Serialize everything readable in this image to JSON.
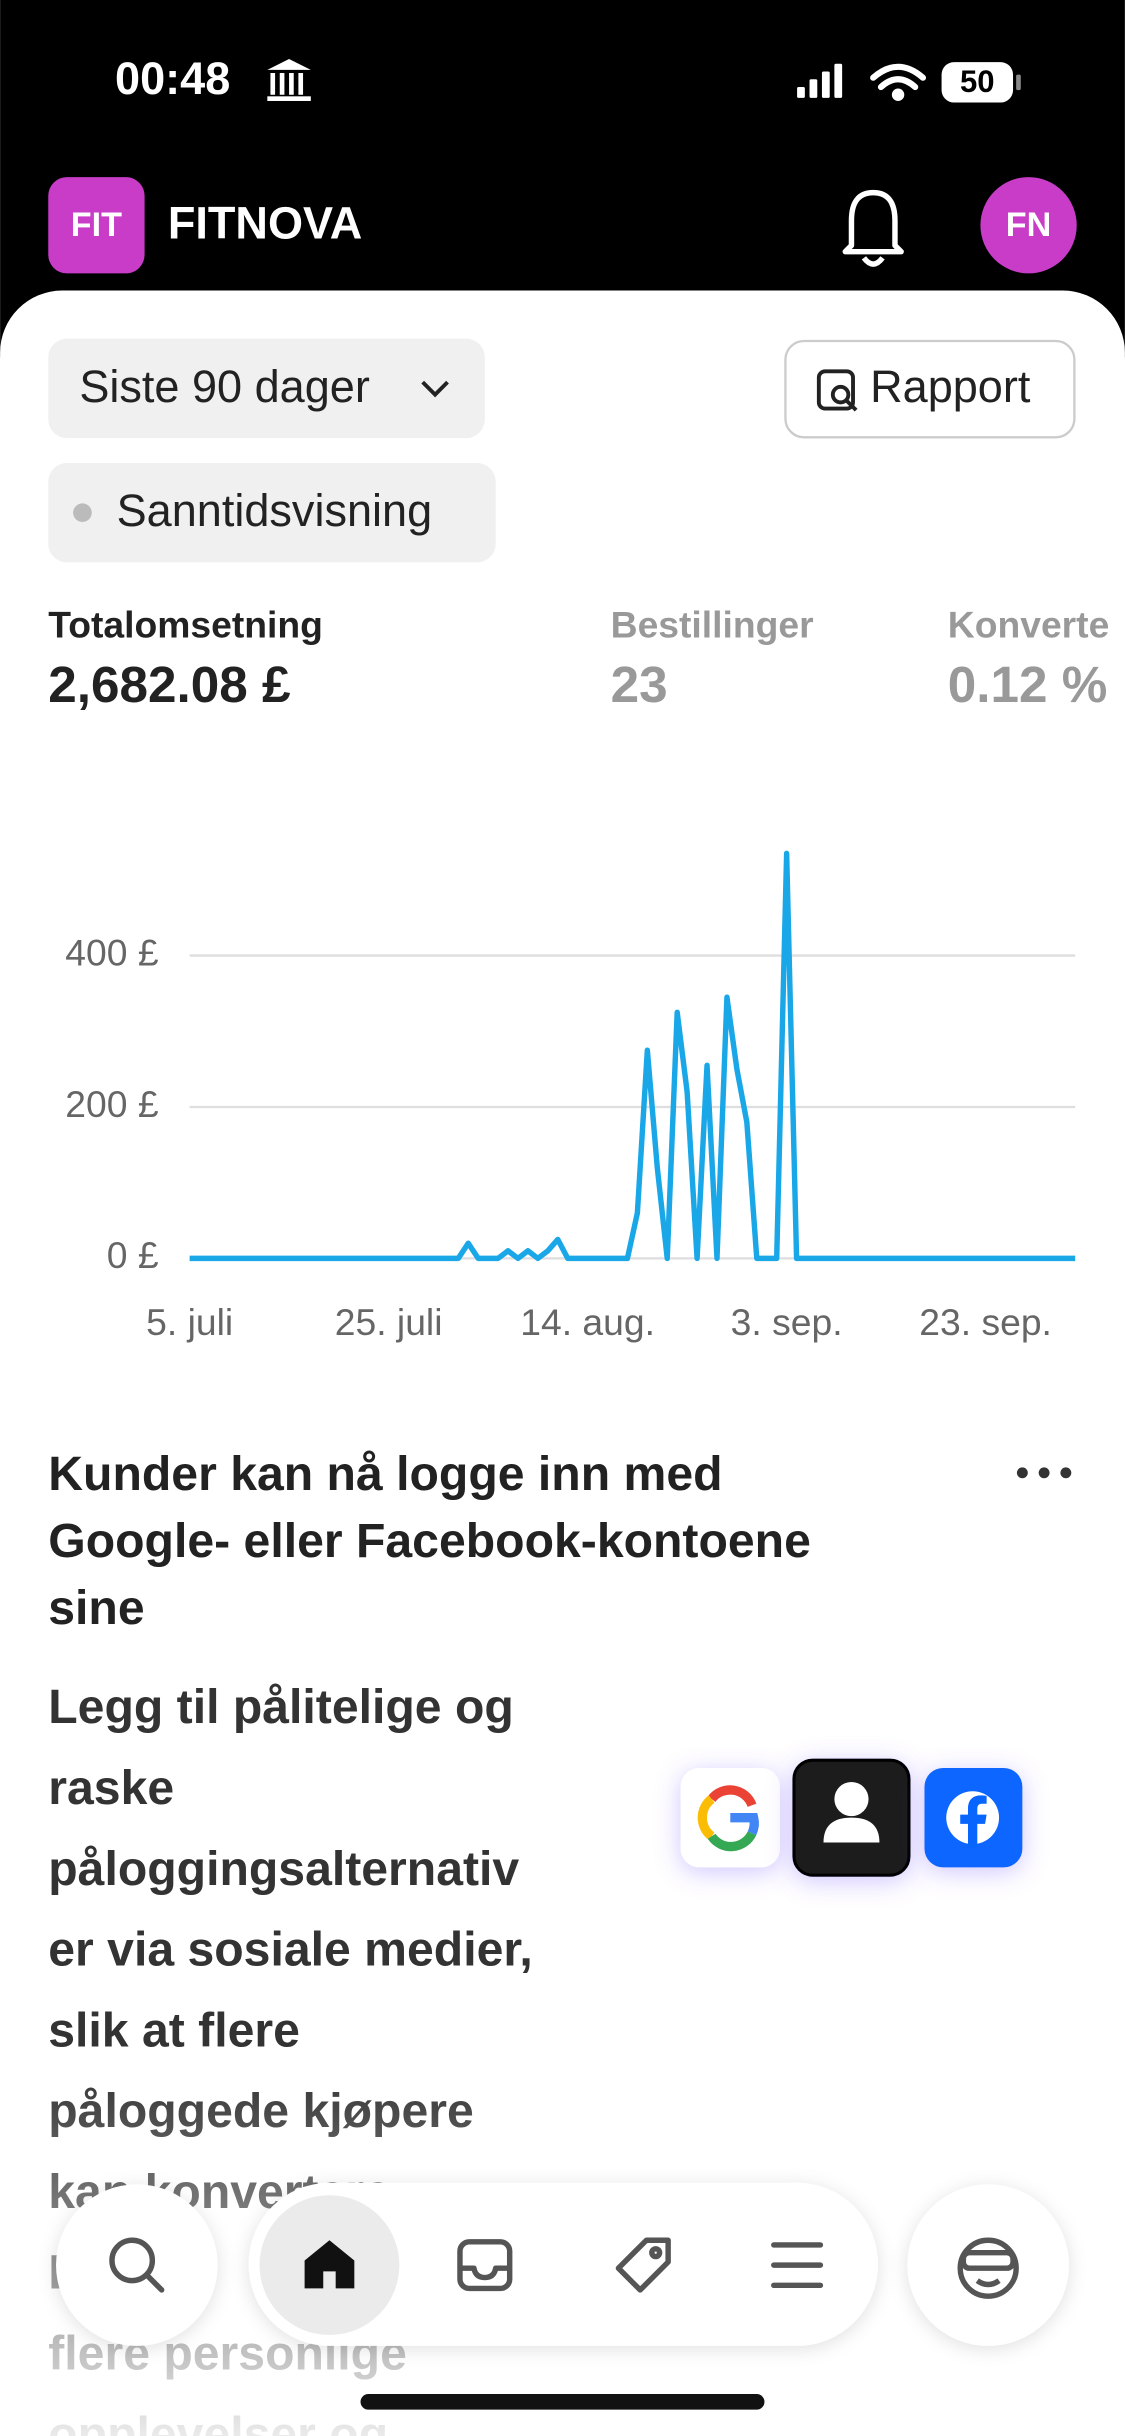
{
  "status_bar": {
    "time": "00:48",
    "battery": "50"
  },
  "header": {
    "logo": "FIT",
    "brand": "FITNOVA",
    "avatar": "FN"
  },
  "filters": {
    "period": "Siste 90 dager",
    "report": "Rapport",
    "live": "Sanntidsvisning"
  },
  "metrics": [
    {
      "label": "Totalomsetning",
      "value": "2,682.08 £"
    },
    {
      "label": "Bestillinger",
      "value": "23"
    },
    {
      "label": "Konverte",
      "value": "0.12 %"
    }
  ],
  "chart": {
    "type": "line",
    "color": "#1aa7e8",
    "x": [
      "5. juli",
      null,
      null,
      null,
      null,
      null,
      null,
      null,
      null,
      null,
      null,
      null,
      null,
      null,
      null,
      null,
      null,
      null,
      null,
      null,
      "25. juli",
      null,
      null,
      null,
      null,
      null,
      null,
      null,
      null,
      null,
      null,
      null,
      null,
      null,
      null,
      null,
      null,
      null,
      null,
      null,
      "14. aug.",
      null,
      null,
      null,
      null,
      null,
      null,
      null,
      null,
      null,
      null,
      null,
      null,
      null,
      null,
      null,
      null,
      null,
      null,
      null,
      "3. sep.",
      null,
      null,
      null,
      null,
      null,
      null,
      null,
      null,
      null,
      null,
      null,
      null,
      null,
      null,
      null,
      null,
      null,
      null,
      null,
      "23. sep.",
      null,
      null,
      null,
      null,
      null,
      null,
      null,
      null,
      null
    ],
    "values": [
      0,
      0,
      0,
      0,
      0,
      0,
      0,
      0,
      0,
      0,
      0,
      0,
      0,
      0,
      0,
      0,
      0,
      0,
      0,
      0,
      0,
      0,
      0,
      0,
      0,
      0,
      0,
      0,
      20,
      0,
      0,
      0,
      10,
      0,
      10,
      0,
      10,
      25,
      0,
      0,
      0,
      0,
      0,
      0,
      0,
      60,
      275,
      120,
      0,
      325,
      220,
      0,
      255,
      0,
      345,
      250,
      180,
      0,
      0,
      0,
      535,
      0,
      0,
      0,
      0,
      0,
      0,
      0,
      0,
      0,
      0,
      0,
      0,
      0,
      0,
      0,
      0,
      0,
      0,
      0,
      0,
      0,
      0,
      0,
      0,
      0,
      0,
      0,
      0,
      0
    ],
    "ylim": [
      0,
      550
    ],
    "yticks": [
      {
        "value": 0,
        "label": "0 £"
      },
      {
        "value": 200,
        "label": "200 £"
      },
      {
        "value": 400,
        "label": "400 £"
      }
    ],
    "grid": true
  },
  "card": {
    "title": [
      "Kunder kan nå logge inn med",
      "Google- eller Facebook-kontoene",
      "sine"
    ],
    "body": [
      "Legg til pålitelige og",
      "raske",
      "påloggingsalternativ",
      "er via sosiale medier,",
      "slik at flere",
      "påloggede kjøpere",
      "kan konvertere.",
      "Lever",
      "flere personlige",
      "opplevelser og"
    ]
  }
}
